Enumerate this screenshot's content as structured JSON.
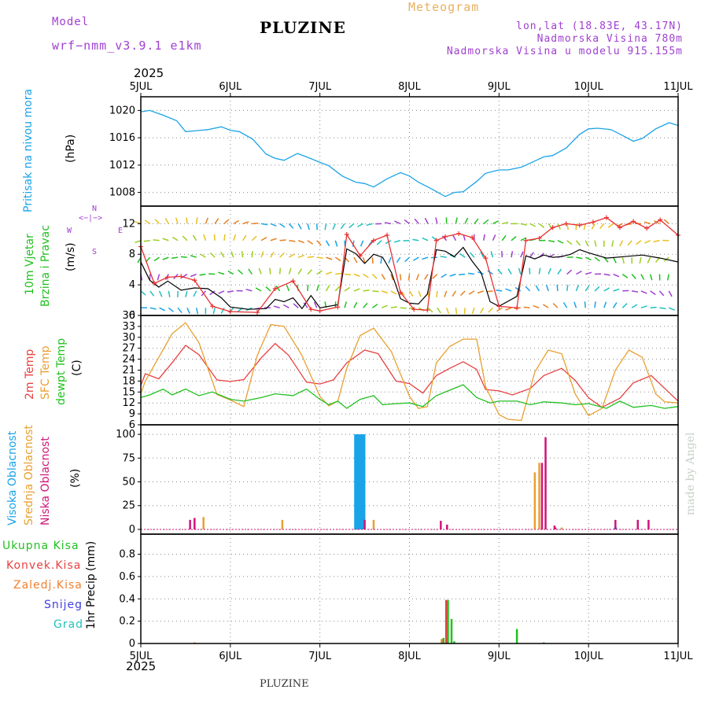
{
  "header": {
    "model_label": "Model",
    "model_name": "wrf−nmm_v3.9.1  e1km",
    "title": "PLUZINE",
    "meteogram": "Meteogram",
    "lonlat": "lon,lat (18.83E, 43.17N)",
    "elevation": "Nadmorska Visina 780m",
    "model_elevation": "Nadmorska Visina u modelu 915.155m",
    "year_top": "2025",
    "year_bottom": "2025",
    "footer_station": "PLUZINE",
    "credit": "made by Angel"
  },
  "colors": {
    "pressure": "#1ba3e8",
    "t2m": "#e84040",
    "sfc": "#e8a030",
    "dewpt": "#22c020",
    "wind_speed": "#000000",
    "gust": "#e83030",
    "high_cloud": "#1ba3e8",
    "mid_cloud": "#e8a030",
    "low_cloud": "#d0147a",
    "total_precip": "#22c020",
    "conv_precip": "#e84040",
    "ice_precip": "#f08030",
    "snow": "#4040e0",
    "graupel": "#20c0c0",
    "label_purple": "#a040d0",
    "label_orange": "#e8b060"
  },
  "chart_data": [
    {
      "type": "line",
      "panel": "pressure",
      "xlabels": [
        "5JUL",
        "6JUL",
        "7JUL",
        "8JUL",
        "9JUL",
        "10JUL",
        "11JUL"
      ],
      "ylabel_left": "Pritisak na nivou mora",
      "ylabel_unit": "(hPa)",
      "ylim": [
        1006,
        1022
      ],
      "yticks": [
        1008,
        1012,
        1016,
        1020
      ],
      "grid": true,
      "series": [
        {
          "key": "pressure",
          "x": [
            0,
            0.1,
            0.25,
            0.4,
            0.5,
            0.6,
            0.75,
            0.9,
            1.0,
            1.1,
            1.25,
            1.4,
            1.5,
            1.6,
            1.75,
            1.85,
            2.0,
            2.1,
            2.25,
            2.4,
            2.5,
            2.6,
            2.75,
            2.9,
            3.0,
            3.1,
            3.25,
            3.4,
            3.5,
            3.6,
            3.75,
            3.85,
            4.0,
            4.1,
            4.25,
            4.4,
            4.5,
            4.6,
            4.75,
            4.9,
            5.0,
            5.1,
            5.25,
            5.4,
            5.5,
            5.6,
            5.75,
            5.9,
            6.0
          ],
          "y": [
            1019.8,
            1020,
            1019.3,
            1018.5,
            1016.9,
            1017,
            1017.2,
            1017.6,
            1017.1,
            1016.9,
            1015.8,
            1013.6,
            1013,
            1012.7,
            1013.7,
            1013.2,
            1012.4,
            1011.9,
            1010.4,
            1009.5,
            1009.3,
            1008.8,
            1010,
            1010.9,
            1010.4,
            1009.5,
            1008.5,
            1007.4,
            1008,
            1008.1,
            1009.6,
            1010.8,
            1011.3,
            1011.3,
            1011.7,
            1012.6,
            1013.2,
            1013.4,
            1014.5,
            1016.5,
            1017.3,
            1017.4,
            1017.2,
            1016.2,
            1015.5,
            1015.9,
            1017.3,
            1018.2,
            1017.8
          ]
        }
      ]
    },
    {
      "type": "line",
      "panel": "wind",
      "ylabel_left": "10m Vjetar",
      "ylabel_left2": "Brzina i Pravac",
      "ylabel_unit": "(m/s)",
      "compass_n": "N",
      "compass_w": "W",
      "compass_e": "E",
      "compass_s": "S",
      "ylim": [
        0,
        14.3
      ],
      "yticks": [
        0,
        4,
        8,
        12
      ],
      "grid": true,
      "series": [
        {
          "key": "wind_speed",
          "x": [
            0,
            0.1,
            0.2,
            0.3,
            0.45,
            0.6,
            0.75,
            0.9,
            1.0,
            1.2,
            1.4,
            1.5,
            1.6,
            1.7,
            1.8,
            1.9,
            2.0,
            2.2,
            2.3,
            2.4,
            2.5,
            2.6,
            2.7,
            2.8,
            2.9,
            3.0,
            3.1,
            3.2,
            3.3,
            3.4,
            3.5,
            3.6,
            3.7,
            3.8,
            3.9,
            4.0,
            4.2,
            4.3,
            4.4,
            4.5,
            4.6,
            4.7,
            4.8,
            4.9,
            5.0,
            5.2,
            5.4,
            5.6,
            5.8,
            6.0
          ],
          "y": [
            7,
            4.6,
            3.7,
            4.5,
            3.3,
            3.6,
            3.5,
            2.3,
            1.1,
            0.8,
            0.9,
            2.1,
            1.8,
            2.3,
            0.9,
            2.6,
            1.0,
            1.4,
            8.7,
            8.1,
            6.8,
            8.0,
            7.6,
            5.6,
            2.2,
            1.6,
            1.5,
            2.8,
            8.6,
            8.4,
            7.7,
            8.9,
            7.1,
            5.6,
            1.8,
            1.2,
            2.5,
            7.8,
            7.4,
            7.9,
            7.6,
            7.7,
            8.0,
            8.6,
            8.2,
            7.5,
            7.7,
            7.9,
            7.5,
            7.0
          ]
        },
        {
          "key": "gust",
          "x": [
            0,
            0.15,
            0.3,
            0.45,
            0.6,
            0.8,
            1.0,
            1.3,
            1.5,
            1.7,
            1.9,
            2.0,
            2.2,
            2.3,
            2.45,
            2.6,
            2.75,
            2.9,
            3.05,
            3.2,
            3.3,
            3.4,
            3.55,
            3.7,
            3.85,
            4.0,
            4.2,
            4.3,
            4.45,
            4.6,
            4.75,
            4.9,
            5.05,
            5.2,
            5.35,
            5.5,
            5.65,
            5.8,
            6.0
          ],
          "y": [
            9,
            4.2,
            5,
            5.1,
            4.6,
            1.2,
            0.5,
            0.4,
            3.5,
            4.5,
            0.8,
            0.6,
            1.1,
            10.6,
            7.8,
            9.8,
            10.5,
            3.0,
            0.8,
            0.7,
            9.8,
            10.3,
            10.7,
            10.2,
            7.5,
            1.2,
            1.0,
            9.8,
            10.1,
            11.5,
            12.0,
            11.8,
            12.2,
            12.8,
            11.5,
            12.3,
            11.4,
            12.5,
            10.5
          ]
        }
      ]
    },
    {
      "type": "line",
      "panel": "temperature",
      "ylabel_left": "2m Temp",
      "ylabel_left2": "SFC Temp",
      "ylabel_left3": "dewpt Temp",
      "ylabel_unit": "(C)",
      "ylim": [
        6,
        36
      ],
      "yticks": [
        6,
        9,
        12,
        15,
        18,
        21,
        24,
        27,
        30,
        33,
        36
      ],
      "grid": true,
      "series": [
        {
          "key": "t2m",
          "x": [
            0,
            0.05,
            0.2,
            0.35,
            0.5,
            0.65,
            0.85,
            1.0,
            1.15,
            1.35,
            1.5,
            1.65,
            1.85,
            2.0,
            2.15,
            2.3,
            2.5,
            2.65,
            2.85,
            3.0,
            3.15,
            3.3,
            3.45,
            3.6,
            3.75,
            3.85,
            4.0,
            4.15,
            4.35,
            4.5,
            4.7,
            4.85,
            5.0,
            5.15,
            5.35,
            5.5,
            5.7,
            5.85,
            6.0
          ],
          "y": [
            16.8,
            20,
            18.6,
            23,
            27.8,
            25.2,
            18.3,
            17.9,
            18.4,
            24.5,
            28.3,
            25.1,
            17.7,
            17.2,
            18.3,
            23,
            26.5,
            25.5,
            18.0,
            17.3,
            14.7,
            19.5,
            21.5,
            23.3,
            21.2,
            15.7,
            15.3,
            14.2,
            16,
            19.5,
            21.5,
            18.2,
            13.4,
            10.8,
            13.3,
            17.5,
            19.5,
            16.0,
            12.5
          ]
        },
        {
          "key": "sfc",
          "x": [
            0,
            0.05,
            0.2,
            0.35,
            0.5,
            0.65,
            0.85,
            1.0,
            1.15,
            1.3,
            1.45,
            1.6,
            1.8,
            2.0,
            2.1,
            2.2,
            2.3,
            2.45,
            2.6,
            2.8,
            3.0,
            3.1,
            3.2,
            3.3,
            3.45,
            3.6,
            3.75,
            3.85,
            4.0,
            4.1,
            4.25,
            4.4,
            4.55,
            4.7,
            4.85,
            5.0,
            5.15,
            5.3,
            5.45,
            5.6,
            5.75,
            5.85,
            6.0
          ],
          "y": [
            14.5,
            18,
            24.5,
            31,
            34,
            28.5,
            14.3,
            12.8,
            11,
            25,
            33.5,
            33,
            25,
            13.8,
            11.2,
            12.5,
            21.5,
            30.5,
            32.5,
            26,
            13.8,
            10.5,
            11,
            23,
            27.5,
            29.5,
            29.5,
            16.5,
            8.8,
            7.5,
            7.2,
            20.5,
            26.5,
            25.5,
            14.5,
            8.5,
            10.5,
            21,
            26.5,
            24.5,
            14.5,
            12.3,
            12.0
          ]
        },
        {
          "key": "dewpt",
          "x": [
            0,
            0.1,
            0.25,
            0.35,
            0.5,
            0.65,
            0.8,
            1.0,
            1.15,
            1.35,
            1.5,
            1.7,
            1.85,
            2.0,
            2.1,
            2.2,
            2.3,
            2.45,
            2.6,
            2.7,
            2.85,
            3.0,
            3.15,
            3.3,
            3.45,
            3.6,
            3.75,
            3.9,
            4.0,
            4.2,
            4.35,
            4.5,
            4.7,
            4.85,
            5.0,
            5.2,
            5.35,
            5.5,
            5.7,
            5.85,
            6.0
          ],
          "y": [
            13.5,
            14.2,
            15.8,
            14.2,
            15.8,
            14,
            15,
            13,
            12.5,
            13.5,
            14.5,
            14,
            15.8,
            13,
            11.5,
            12.5,
            10.5,
            13,
            14,
            11.5,
            11.8,
            12,
            11,
            14,
            15.5,
            17,
            13.5,
            12,
            12.5,
            12.5,
            11.5,
            12.3,
            12,
            11.5,
            11.8,
            10.5,
            12.5,
            10.8,
            11.3,
            10.5,
            11.0
          ]
        }
      ]
    },
    {
      "type": "bar",
      "panel": "cloud",
      "ylabel_left": "Visoka Oblacnost",
      "ylabel_left2": "Srednja Oblacnost",
      "ylabel_left3": "Niska Oblacnost",
      "ylabel_unit": "(%)",
      "ylim": [
        -5,
        110
      ],
      "yticks": [
        0,
        25,
        50,
        75,
        100
      ],
      "grid": true,
      "series": [
        {
          "key": "high_cloud",
          "x": [
            2.4,
            2.43,
            2.46,
            2.49,
            5.3
          ],
          "values": [
            100,
            100,
            100,
            100,
            2
          ]
        },
        {
          "key": "mid_cloud",
          "x": [
            0.7,
            1.58,
            2.6,
            4.4,
            4.45,
            4.7
          ],
          "values": [
            13,
            10,
            10,
            60,
            70,
            2
          ]
        },
        {
          "key": "low_cloud",
          "x": [
            0.55,
            0.6,
            2.5,
            3.35,
            3.42,
            4.48,
            4.52,
            4.62,
            4.63,
            5.3,
            5.55,
            5.67
          ],
          "values": [
            10,
            12,
            10,
            9,
            5,
            70,
            97,
            4,
            2,
            10,
            10,
            10
          ]
        }
      ]
    },
    {
      "type": "bar",
      "panel": "precip",
      "ylabel_left": "1hr Precip",
      "ylabel_unit": "(mm)",
      "legend": [
        "Ukupna  Kisa",
        "Konvek.Kisa",
        "Zaledj.Kisa",
        "Snijeg",
        "Grad"
      ],
      "ylim": [
        0,
        0.98
      ],
      "yticks": [
        0,
        0.2,
        0.4,
        0.6,
        0.8
      ],
      "grid": true,
      "series": [
        {
          "key": "total_precip",
          "x": [
            3.38,
            3.43,
            3.47,
            3.5,
            4.2,
            4.5
          ],
          "values": [
            0.05,
            0.39,
            0.22,
            0.02,
            0.13,
            0.01
          ]
        },
        {
          "key": "conv_precip",
          "x": [
            3.41
          ],
          "values": [
            0.39
          ]
        },
        {
          "key": "ice_precip",
          "x": [
            0.6,
            3.36
          ],
          "values": [
            0.01,
            0.04
          ]
        }
      ]
    }
  ]
}
